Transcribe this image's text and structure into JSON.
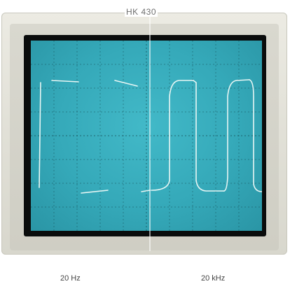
{
  "model_label": "HK 430",
  "captions": {
    "left": "20 Hz",
    "right": "20 kHz"
  },
  "colors": {
    "phosphor": "#38adbd",
    "trace": "#e8f6f4",
    "bezel": "#e2e1d8"
  }
}
